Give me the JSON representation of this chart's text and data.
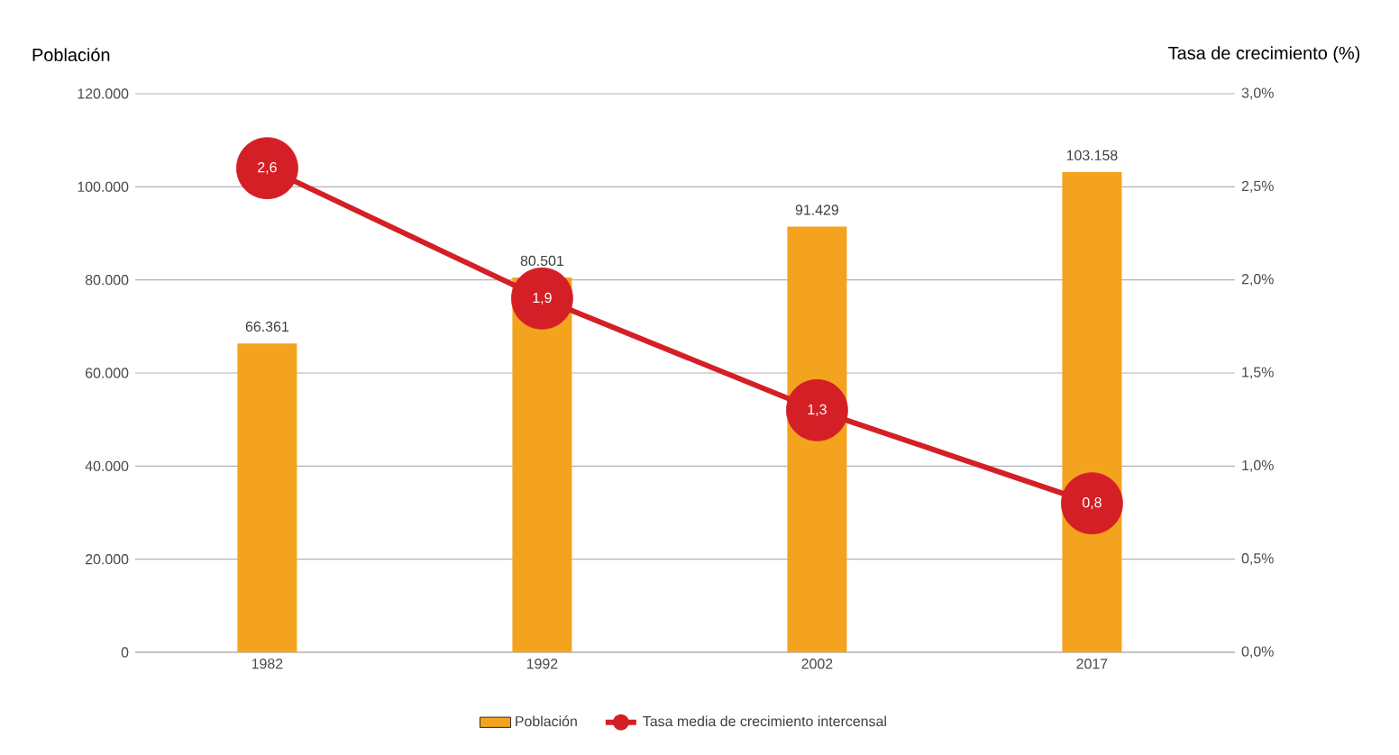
{
  "chart_data": {
    "type": "bar",
    "categories": [
      "1982",
      "1992",
      "2002",
      "2017"
    ],
    "ylabel": "Población",
    "y2label": "Tasa de crecimiento (%)",
    "series": [
      {
        "name": "Población",
        "color": "#f4a31f",
        "values": [
          66361,
          80501,
          91429,
          103158
        ],
        "value_labels": [
          "66.361",
          "80.501",
          "91.429",
          "103.158"
        ]
      },
      {
        "name": "Tasa media de crecimiento intercensal",
        "type": "line",
        "axis": "y2",
        "color": "#d41f26",
        "values": [
          2.6,
          1.9,
          1.3,
          0.8
        ],
        "value_labels": [
          "2,6",
          "1,9",
          "1,3",
          "0,8"
        ]
      }
    ],
    "ylim": [
      0,
      120000
    ],
    "yticks": [
      {
        "value": 0,
        "label": "0"
      },
      {
        "value": 20000,
        "label": "20.000"
      },
      {
        "value": 40000,
        "label": "40.000"
      },
      {
        "value": 60000,
        "label": "60.000"
      },
      {
        "value": 80000,
        "label": "80.000"
      },
      {
        "value": 100000,
        "label": "100.000"
      },
      {
        "value": 120000,
        "label": "120.000"
      }
    ],
    "y2lim": [
      0,
      3
    ],
    "y2ticks": [
      {
        "value": 0,
        "label": "0,0%"
      },
      {
        "value": 0.5,
        "label": "0,5%"
      },
      {
        "value": 1.0,
        "label": "1,0%"
      },
      {
        "value": 1.5,
        "label": "1,5%"
      },
      {
        "value": 2.0,
        "label": "2,0%"
      },
      {
        "value": 2.5,
        "label": "2,5%"
      },
      {
        "value": 3.0,
        "label": "3,0%"
      }
    ],
    "grid": "y",
    "legend": "bottom",
    "marker": "circle"
  }
}
